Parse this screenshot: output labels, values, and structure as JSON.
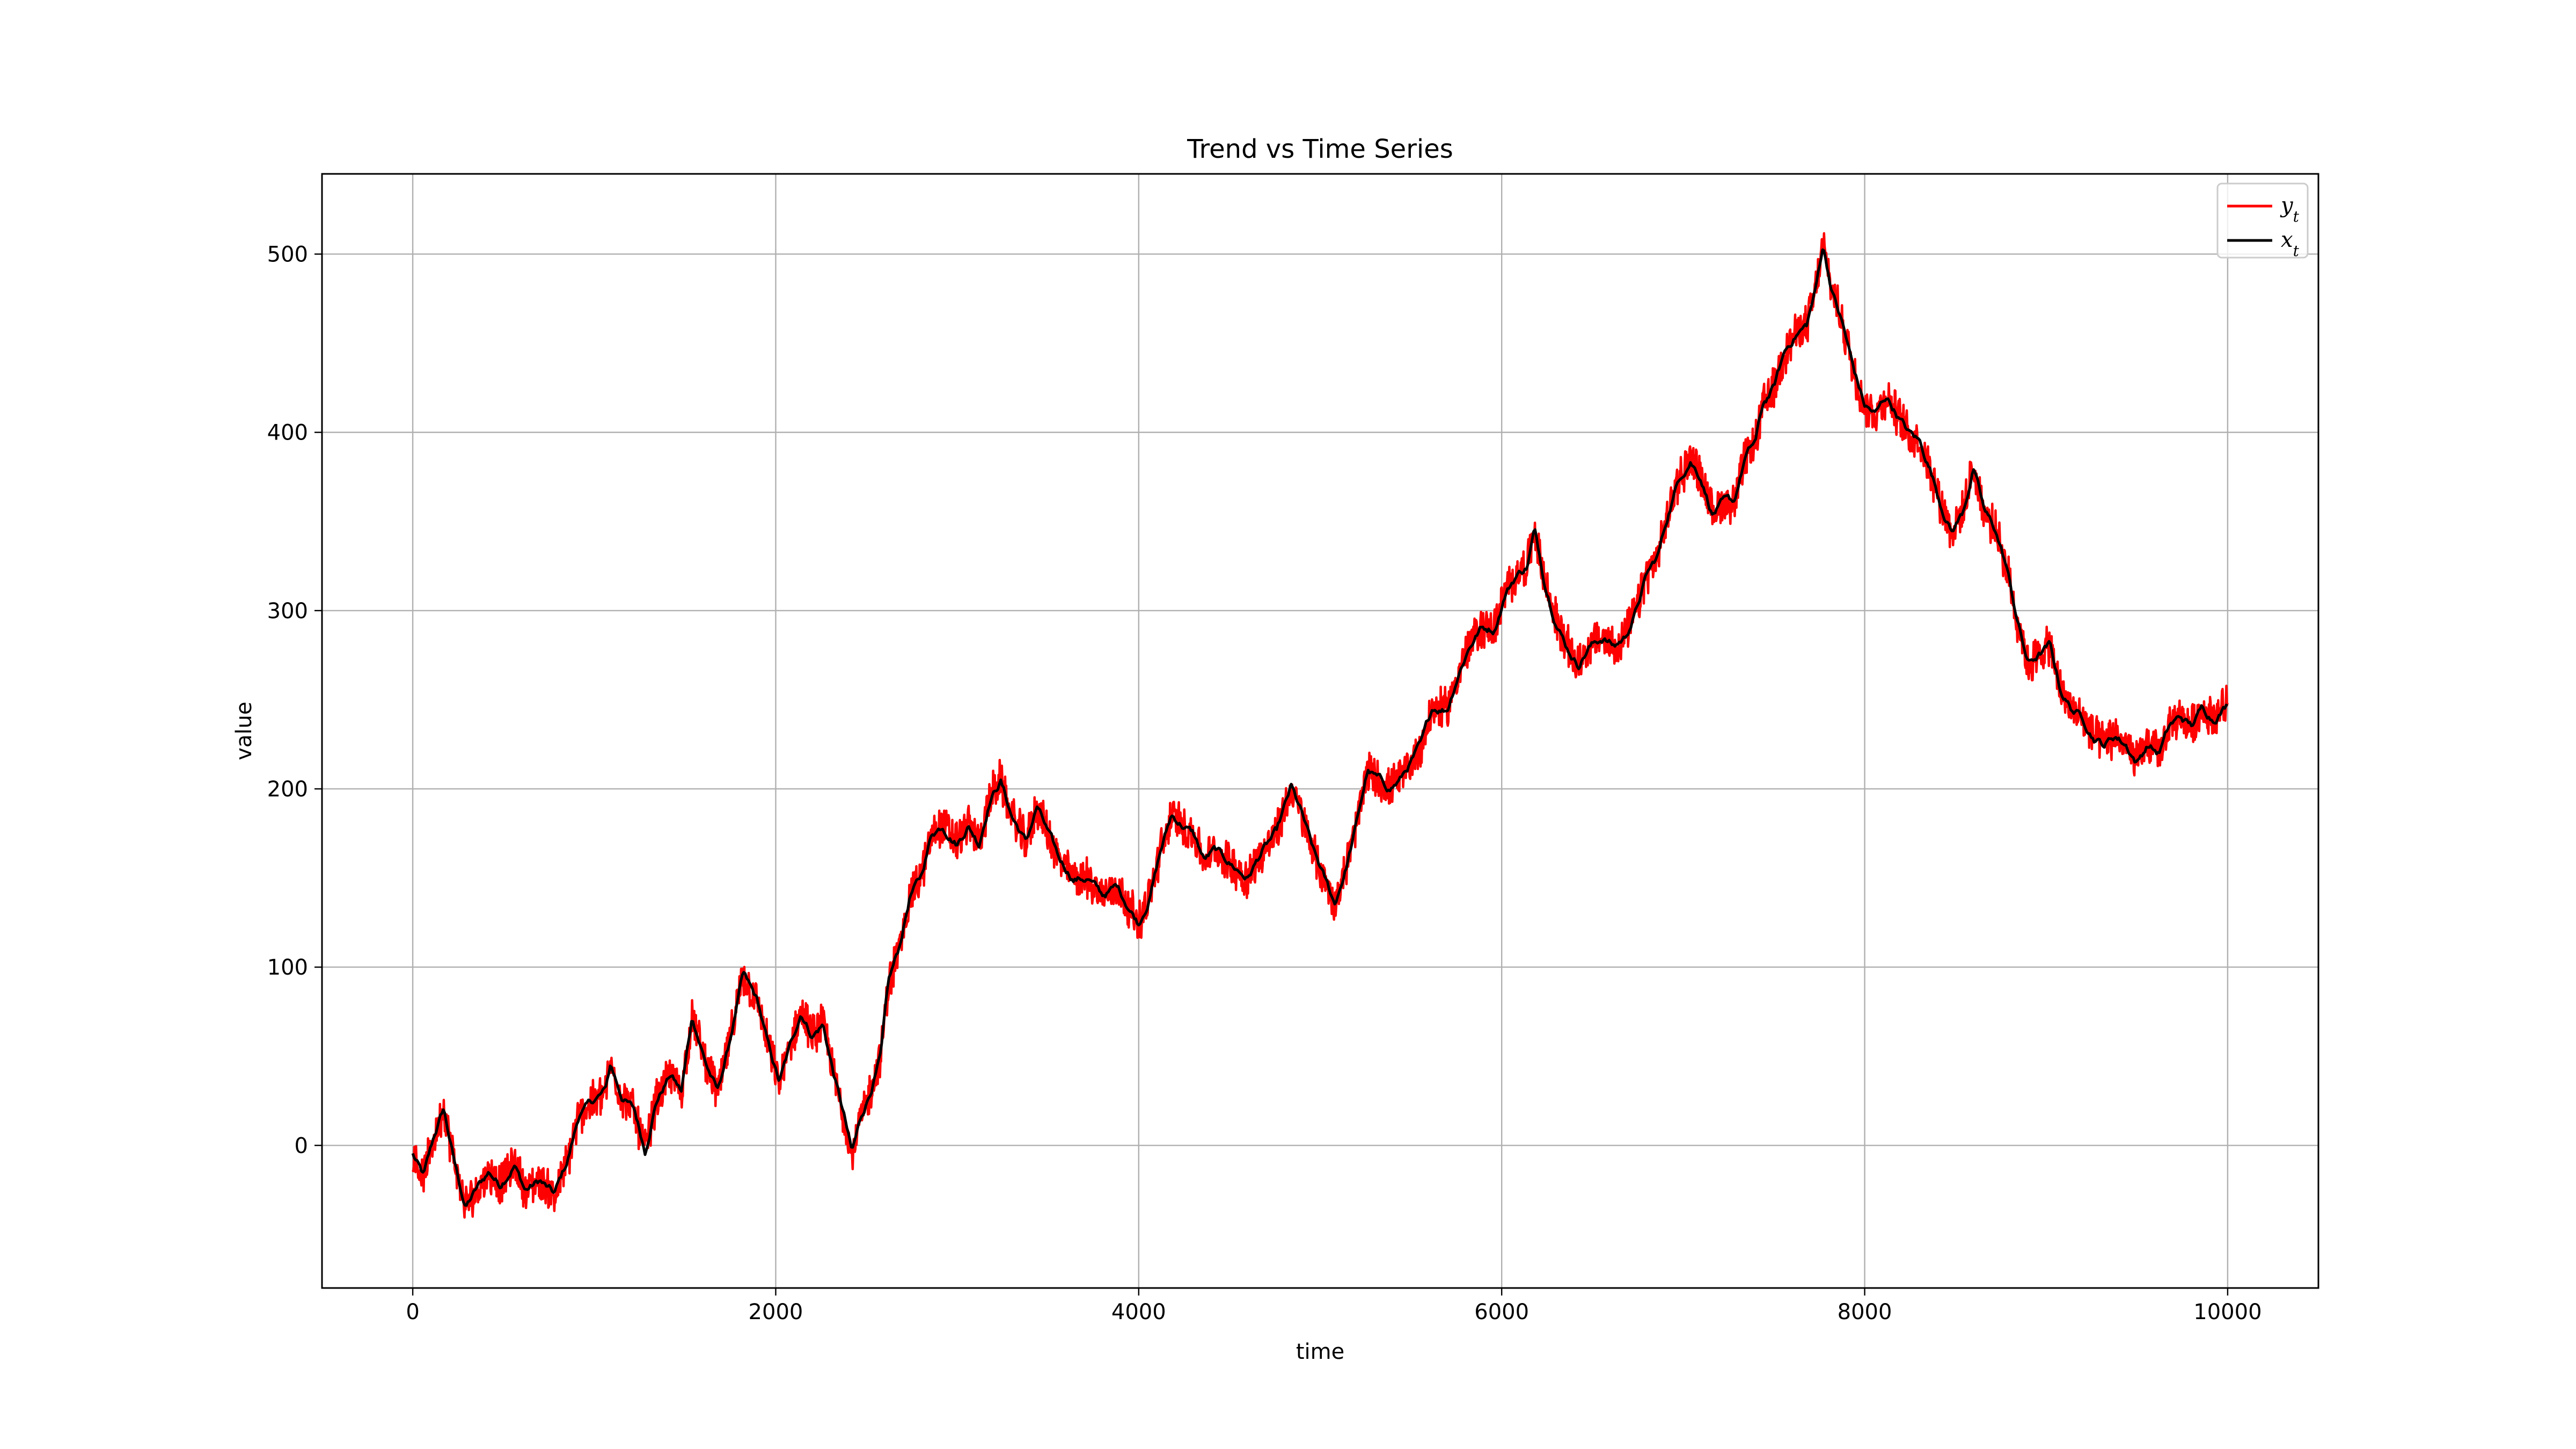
{
  "chart_data": {
    "type": "line",
    "title": "Trend vs Time Series",
    "xlabel": "time",
    "ylabel": "value",
    "xlim": [
      -500,
      10500
    ],
    "ylim": [
      -80,
      545
    ],
    "xticks": [
      0,
      2000,
      4000,
      6000,
      8000,
      10000
    ],
    "yticks": [
      0,
      100,
      200,
      300,
      400,
      500
    ],
    "grid": true,
    "legend_position": "top-right",
    "trend_points": [
      [
        0,
        -5
      ],
      [
        60,
        -18
      ],
      [
        120,
        5
      ],
      [
        170,
        20
      ],
      [
        230,
        -10
      ],
      [
        290,
        -35
      ],
      [
        350,
        -25
      ],
      [
        420,
        -15
      ],
      [
        480,
        -22
      ],
      [
        560,
        -10
      ],
      [
        620,
        -25
      ],
      [
        700,
        -20
      ],
      [
        780,
        -28
      ],
      [
        850,
        -10
      ],
      [
        920,
        18
      ],
      [
        1000,
        25
      ],
      [
        1060,
        30
      ],
      [
        1090,
        45
      ],
      [
        1150,
        28
      ],
      [
        1220,
        20
      ],
      [
        1280,
        -3
      ],
      [
        1340,
        25
      ],
      [
        1420,
        40
      ],
      [
        1480,
        30
      ],
      [
        1540,
        72
      ],
      [
        1620,
        45
      ],
      [
        1680,
        30
      ],
      [
        1740,
        55
      ],
      [
        1820,
        95
      ],
      [
        1900,
        80
      ],
      [
        1960,
        55
      ],
      [
        2020,
        35
      ],
      [
        2080,
        55
      ],
      [
        2140,
        75
      ],
      [
        2200,
        62
      ],
      [
        2260,
        68
      ],
      [
        2320,
        40
      ],
      [
        2380,
        15
      ],
      [
        2420,
        -5
      ],
      [
        2470,
        15
      ],
      [
        2520,
        30
      ],
      [
        2580,
        50
      ],
      [
        2620,
        90
      ],
      [
        2680,
        110
      ],
      [
        2740,
        140
      ],
      [
        2800,
        150
      ],
      [
        2860,
        175
      ],
      [
        2920,
        180
      ],
      [
        3000,
        170
      ],
      [
        3060,
        180
      ],
      [
        3120,
        170
      ],
      [
        3180,
        195
      ],
      [
        3240,
        205
      ],
      [
        3300,
        185
      ],
      [
        3380,
        170
      ],
      [
        3440,
        190
      ],
      [
        3500,
        175
      ],
      [
        3560,
        160
      ],
      [
        3640,
        150
      ],
      [
        3720,
        150
      ],
      [
        3800,
        140
      ],
      [
        3880,
        145
      ],
      [
        3940,
        135
      ],
      [
        4000,
        125
      ],
      [
        4060,
        140
      ],
      [
        4120,
        165
      ],
      [
        4180,
        185
      ],
      [
        4240,
        180
      ],
      [
        4300,
        175
      ],
      [
        4360,
        160
      ],
      [
        4420,
        165
      ],
      [
        4480,
        160
      ],
      [
        4540,
        155
      ],
      [
        4600,
        150
      ],
      [
        4680,
        165
      ],
      [
        4760,
        175
      ],
      [
        4840,
        200
      ],
      [
        4900,
        185
      ],
      [
        4960,
        165
      ],
      [
        5020,
        150
      ],
      [
        5080,
        135
      ],
      [
        5140,
        155
      ],
      [
        5200,
        180
      ],
      [
        5260,
        210
      ],
      [
        5320,
        205
      ],
      [
        5380,
        200
      ],
      [
        5440,
        205
      ],
      [
        5500,
        215
      ],
      [
        5560,
        225
      ],
      [
        5620,
        245
      ],
      [
        5700,
        245
      ],
      [
        5760,
        265
      ],
      [
        5820,
        280
      ],
      [
        5880,
        290
      ],
      [
        5960,
        290
      ],
      [
        6020,
        310
      ],
      [
        6080,
        320
      ],
      [
        6140,
        325
      ],
      [
        6180,
        345
      ],
      [
        6240,
        315
      ],
      [
        6300,
        295
      ],
      [
        6360,
        280
      ],
      [
        6420,
        270
      ],
      [
        6480,
        280
      ],
      [
        6560,
        285
      ],
      [
        6620,
        280
      ],
      [
        6680,
        285
      ],
      [
        6740,
        300
      ],
      [
        6800,
        320
      ],
      [
        6860,
        330
      ],
      [
        6920,
        355
      ],
      [
        6980,
        375
      ],
      [
        7040,
        385
      ],
      [
        7100,
        375
      ],
      [
        7160,
        355
      ],
      [
        7220,
        360
      ],
      [
        7280,
        360
      ],
      [
        7340,
        385
      ],
      [
        7400,
        395
      ],
      [
        7440,
        415
      ],
      [
        7500,
        425
      ],
      [
        7560,
        445
      ],
      [
        7620,
        455
      ],
      [
        7680,
        460
      ],
      [
        7730,
        480
      ],
      [
        7770,
        505
      ],
      [
        7820,
        480
      ],
      [
        7880,
        460
      ],
      [
        7940,
        435
      ],
      [
        8000,
        415
      ],
      [
        8060,
        410
      ],
      [
        8120,
        420
      ],
      [
        8180,
        410
      ],
      [
        8240,
        400
      ],
      [
        8300,
        395
      ],
      [
        8360,
        380
      ],
      [
        8420,
        360
      ],
      [
        8480,
        345
      ],
      [
        8540,
        355
      ],
      [
        8600,
        380
      ],
      [
        8660,
        355
      ],
      [
        8720,
        345
      ],
      [
        8780,
        325
      ],
      [
        8840,
        295
      ],
      [
        8900,
        270
      ],
      [
        8960,
        275
      ],
      [
        9020,
        280
      ],
      [
        9080,
        255
      ],
      [
        9140,
        245
      ],
      [
        9200,
        240
      ],
      [
        9260,
        230
      ],
      [
        9320,
        225
      ],
      [
        9380,
        230
      ],
      [
        9440,
        225
      ],
      [
        9500,
        215
      ],
      [
        9560,
        225
      ],
      [
        9620,
        220
      ],
      [
        9680,
        235
      ],
      [
        9740,
        240
      ],
      [
        9800,
        235
      ],
      [
        9860,
        245
      ],
      [
        9920,
        240
      ],
      [
        10000,
        248
      ]
    ],
    "series": [
      {
        "name": "y_t",
        "role": "noisy observations of trend",
        "color": "#ff0000",
        "noise_amplitude": 10
      },
      {
        "name": "x_t",
        "role": "trend",
        "color": "#000000"
      }
    ]
  }
}
